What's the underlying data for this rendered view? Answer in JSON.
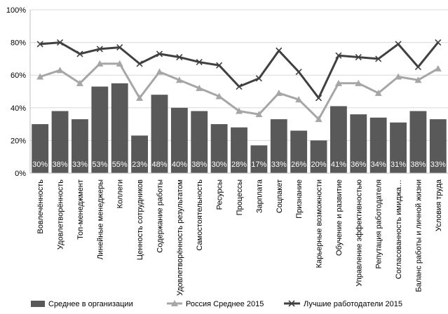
{
  "chart_data": {
    "type": "bar",
    "categories": [
      "Вовлечённость",
      "Удовлетворённость",
      "Топ-менеджмент",
      "Линейные менеджеры",
      "Коллеги",
      "Ценность сотрудников",
      "Содержание работы",
      "Удовлетворённость результатом",
      "Самостоятельность",
      "Ресурсы",
      "Процессы",
      "Зарплата",
      "Соцпакет",
      "Признание",
      "Карьерные возможности",
      "Обучение и развитие",
      "Управление эффективностью",
      "Репутация работодателя",
      "Согласованность имиджа…",
      "Баланс работы и личной жизни",
      "Условия труда"
    ],
    "series": [
      {
        "name": "Среднее в организации",
        "kind": "bar",
        "color": "#595959",
        "values": [
          30,
          38,
          33,
          53,
          55,
          23,
          48,
          40,
          38,
          30,
          28,
          17,
          33,
          26,
          20,
          41,
          36,
          34,
          31,
          38,
          33
        ],
        "labels": [
          "30%",
          "38%",
          "33%",
          "53%",
          "55%",
          "23%",
          "48%",
          "40%",
          "38%",
          "30%",
          "28%",
          "17%",
          "33%",
          "26%",
          "20%",
          "41%",
          "36%",
          "34%",
          "31%",
          "38%",
          "33%"
        ]
      },
      {
        "name": "Россия Среднее 2015",
        "kind": "line",
        "marker": "triangle",
        "color": "#a6a6a6",
        "values": [
          59,
          63,
          55,
          67,
          67,
          46,
          62,
          57,
          52,
          47,
          38,
          36,
          49,
          45,
          33,
          55,
          55,
          49,
          59,
          57,
          64
        ]
      },
      {
        "name": "Лучшие работодатели 2015",
        "kind": "line",
        "marker": "x",
        "color": "#404040",
        "values": [
          79,
          80,
          73,
          76,
          77,
          67,
          73,
          71,
          68,
          66,
          53,
          58,
          75,
          62,
          46,
          72,
          71,
          70,
          79,
          65,
          80
        ]
      }
    ],
    "yticks": [
      "0%",
      "20%",
      "40%",
      "60%",
      "80%",
      "100%"
    ],
    "ylim": [
      0,
      100
    ],
    "grid": true,
    "legend_position": "bottom"
  }
}
